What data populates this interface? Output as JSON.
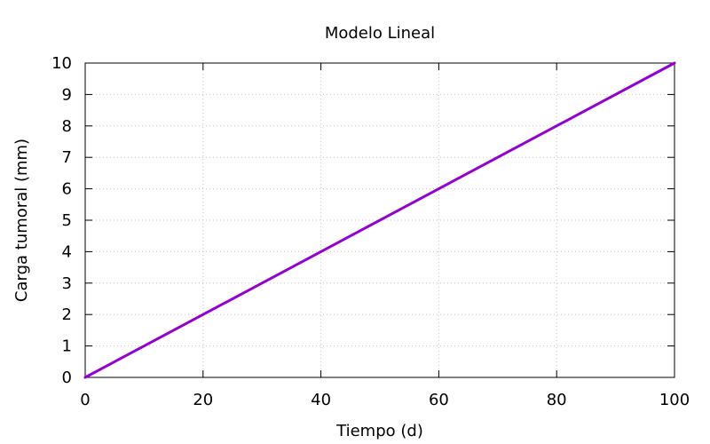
{
  "chart_data": {
    "type": "line",
    "title": "Modelo Lineal",
    "xlabel": "Tiempo (d)",
    "ylabel": "Carga tumoral (mm)",
    "xlim": [
      0,
      100
    ],
    "ylim": [
      0,
      10
    ],
    "x_ticks": [
      "0",
      "20",
      "40",
      "60",
      "80",
      "100"
    ],
    "y_ticks": [
      "0",
      "1",
      "2",
      "3",
      "4",
      "5",
      "6",
      "7",
      "8",
      "9",
      "10"
    ],
    "grid": true,
    "legend": "none",
    "series": [
      {
        "color": "#9400d3",
        "points": [
          [
            0,
            0
          ],
          [
            100,
            10
          ]
        ]
      }
    ]
  }
}
